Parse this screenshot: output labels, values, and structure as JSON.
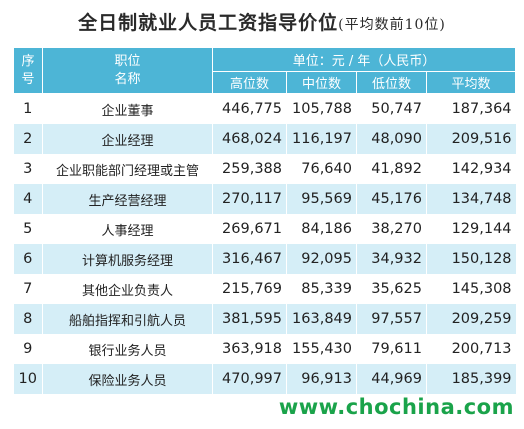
{
  "title": "全日制就业人员工资指导价位",
  "subtitle": "(平均数前10位)",
  "header": {
    "index": "序\n号",
    "position": "职位\n名称",
    "unit": "单位：元 / 年（人民币）",
    "columns": [
      "高位数",
      "中位数",
      "低位数",
      "平均数"
    ]
  },
  "rows": [
    {
      "index": "1",
      "position": "企业董事",
      "high": "446,775",
      "median": "105,788",
      "low": "50,747",
      "average": "187,364"
    },
    {
      "index": "2",
      "position": "企业经理",
      "high": "468,024",
      "median": "116,197",
      "low": "48,090",
      "average": "209,516"
    },
    {
      "index": "3",
      "position": "企业职能部门经理或主管",
      "high": "259,388",
      "median": "76,640",
      "low": "41,892",
      "average": "142,934"
    },
    {
      "index": "4",
      "position": "生产经营经理",
      "high": "270,117",
      "median": "95,569",
      "low": "45,176",
      "average": "134,748"
    },
    {
      "index": "5",
      "position": "人事经理",
      "high": "269,671",
      "median": "84,186",
      "low": "38,270",
      "average": "129,144"
    },
    {
      "index": "6",
      "position": "计算机服务经理",
      "high": "316,467",
      "median": "92,095",
      "low": "34,932",
      "average": "150,128"
    },
    {
      "index": "7",
      "position": "其他企业负责人",
      "high": "215,769",
      "median": "85,339",
      "low": "35,625",
      "average": "145,308"
    },
    {
      "index": "8",
      "position": "船舶指挥和引航人员",
      "high": "381,595",
      "median": "163,849",
      "low": "97,557",
      "average": "209,259"
    },
    {
      "index": "9",
      "position": "银行业务人员",
      "high": "363,918",
      "median": "155,430",
      "low": "79,611",
      "average": "200,713"
    },
    {
      "index": "10",
      "position": "保险业务人员",
      "high": "470,997",
      "median": "96,913",
      "low": "44,969",
      "average": "185,399"
    }
  ],
  "watermark": "www.chochina.com"
}
